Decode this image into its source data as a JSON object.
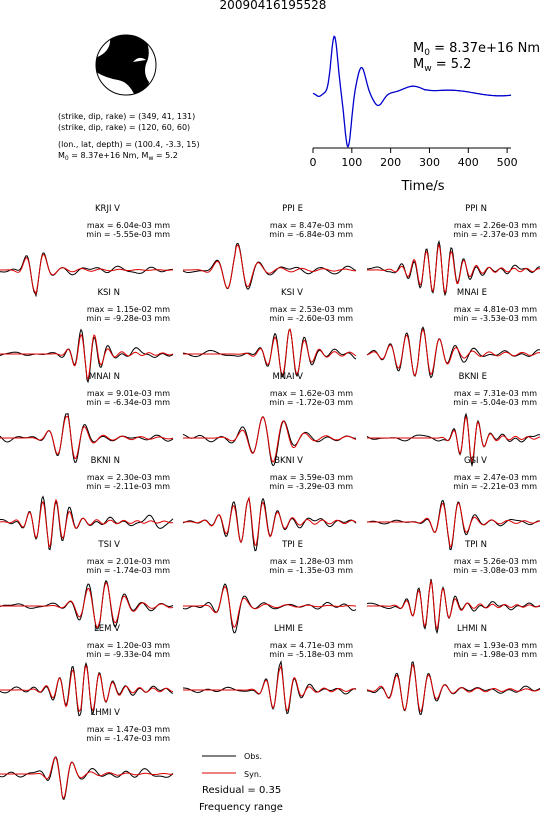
{
  "title": "20090416195528",
  "mechanism": {
    "np1_label": "(strike, dip, rake) = (349, 41, 131)",
    "np2_label": "(strike, dip, rake) = (120, 60, 60)",
    "location_label": "(lon., lat, depth) = (100.4, -3.3, 15)",
    "moment_label": "M",
    "moment_sub": "0",
    "moment_value": " = 8.37e+16 Nm, M",
    "mw_sub": "w",
    "mw_value": " = 5.2"
  },
  "stf": {
    "m0_label": "M",
    "m0_sub": "0",
    "m0_value": " = 8.37e+16 Nm",
    "mw_label": "M",
    "mw_sub": "w",
    "mw_value": " = 5.2",
    "xlabel": "Time/s",
    "xticks": [
      0,
      100,
      200,
      300,
      400,
      500
    ],
    "xlim": [
      0,
      510
    ],
    "line_color": "#0000cc"
  },
  "chart_data": {
    "type": "line",
    "panels": [
      {
        "station": "KRJI V",
        "max_label": "max = 6.04e-03 mm",
        "min_label": "min = -5.55e-03 mm"
      },
      {
        "station": "PPI E",
        "max_label": "max = 8.47e-03 mm",
        "min_label": "min = -6.84e-03 mm"
      },
      {
        "station": "PPI N",
        "max_label": "max = 2.26e-03 mm",
        "min_label": "min = -2.37e-03 mm"
      },
      {
        "station": "KSI N",
        "max_label": "max = 1.15e-02 mm",
        "min_label": "min = -9.28e-03 mm"
      },
      {
        "station": "KSI V",
        "max_label": "max = 2.53e-03 mm",
        "min_label": "min = -2.60e-03 mm"
      },
      {
        "station": "MNAI E",
        "max_label": "max = 4.81e-03 mm",
        "min_label": "min = -3.53e-03 mm"
      },
      {
        "station": "MNAI N",
        "max_label": "max = 9.01e-03 mm",
        "min_label": "min = -6.34e-03 mm"
      },
      {
        "station": "MNAI V",
        "max_label": "max = 1.62e-03 mm",
        "min_label": "min = -1.72e-03 mm"
      },
      {
        "station": "BKNI E",
        "max_label": "max = 7.31e-03 mm",
        "min_label": "min = -5.04e-03 mm"
      },
      {
        "station": "BKNI N",
        "max_label": "max = 2.30e-03 mm",
        "min_label": "min = -2.11e-03 mm"
      },
      {
        "station": "BKNI V",
        "max_label": "max = 3.59e-03 mm",
        "min_label": "min = -3.29e-03 mm"
      },
      {
        "station": "GSI V",
        "max_label": "max = 2.47e-03 mm",
        "min_label": "min = -2.21e-03 mm"
      },
      {
        "station": "TSI V",
        "max_label": "max = 2.01e-03 mm",
        "min_label": "min = -1.74e-03 mm"
      },
      {
        "station": "TPI E",
        "max_label": "max = 1.28e-03 mm",
        "min_label": "min = -1.35e-03 mm"
      },
      {
        "station": "TPI N",
        "max_label": "max = 5.26e-03 mm",
        "min_label": "min = -3.08e-03 mm"
      },
      {
        "station": "LEM V",
        "max_label": "max = 1.20e-03 mm",
        "min_label": "min = -9.33e-04 mm"
      },
      {
        "station": "LHMI E",
        "max_label": "max = 4.71e-03 mm",
        "min_label": "min = -5.18e-03 mm"
      },
      {
        "station": "LHMI N",
        "max_label": "max = 1.93e-03 mm",
        "min_label": "min = -1.98e-03 mm"
      },
      {
        "station": "LHMI V",
        "max_label": "max = 1.47e-03 mm",
        "min_label": "min = -1.47e-03 mm"
      }
    ],
    "legend": {
      "obs_label": "Obs.",
      "syn_label": "Syn.",
      "obs_color": "#000000",
      "syn_color": "#dd0000"
    },
    "residual_label": "Residual = 0.35",
    "frequency_label": "Frequency range"
  }
}
